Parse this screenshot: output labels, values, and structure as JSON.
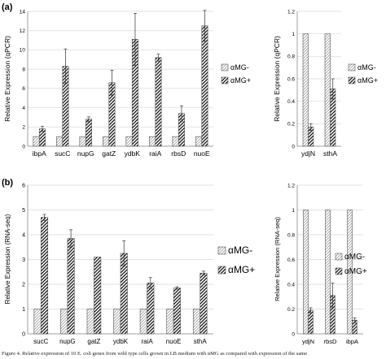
{
  "panel_labels": {
    "a": "(a)",
    "b": "(b)"
  },
  "legend": {
    "neg": "αMG-",
    "pos": "αMG+"
  },
  "caption": "Figure 4. Relative expression of 10 E. coli genes from wild type cells grown in LB medium with αMG as compared with expression of the same",
  "colors": {
    "bar": "#ffffff",
    "stroke": "#555555",
    "grid": "#d9d9d9",
    "axis": "#888888"
  },
  "chart_data": [
    {
      "type": "bar",
      "panel": "a-left",
      "ylabel": "Relative Expression (qPCR)",
      "ylim": [
        0,
        14
      ],
      "yticks": [
        0,
        2,
        4,
        6,
        8,
        10,
        12,
        14
      ],
      "grid": true,
      "legend_position": "right",
      "categories": [
        "ibpA",
        "sucC",
        "nupG",
        "gatZ",
        "ydbK",
        "raiA",
        "rbsD",
        "nuoE"
      ],
      "series": [
        {
          "name": "αMG-",
          "values": [
            1,
            1,
            1,
            1,
            1,
            1,
            1,
            1
          ],
          "errors": [
            0,
            0,
            0,
            0,
            0,
            0,
            0,
            0
          ]
        },
        {
          "name": "αMG+",
          "values": [
            1.8,
            8.3,
            2.8,
            6.6,
            11.1,
            9.2,
            3.4,
            12.5
          ],
          "errors": [
            0.25,
            1.8,
            0.25,
            1.3,
            2.7,
            0.35,
            0.8,
            1.6
          ]
        }
      ]
    },
    {
      "type": "bar",
      "panel": "a-right",
      "ylabel": "Relative Expression (qPCR)",
      "ylim": [
        0,
        1.2
      ],
      "yticks": [
        0,
        0.2,
        0.4,
        0.6,
        0.8,
        1,
        1.2
      ],
      "grid": true,
      "legend_position": "right",
      "categories": [
        "ydjN",
        "sthA"
      ],
      "series": [
        {
          "name": "αMG-",
          "values": [
            1,
            1
          ],
          "errors": [
            0,
            0
          ]
        },
        {
          "name": "αMG+",
          "values": [
            0.17,
            0.51
          ],
          "errors": [
            0.03,
            0.09
          ]
        }
      ]
    },
    {
      "type": "bar",
      "panel": "b-left",
      "ylabel": "Relative Expression (RNA-seq)",
      "ylim": [
        0,
        6
      ],
      "yticks": [
        0,
        1,
        2,
        3,
        4,
        5,
        6
      ],
      "grid": true,
      "legend_position": "right",
      "categories": [
        "sucC",
        "nupG",
        "gatZ",
        "ydbK",
        "raiA",
        "nuoE",
        "sthA"
      ],
      "series": [
        {
          "name": "αMG-",
          "values": [
            1,
            1,
            1,
            1,
            1,
            1,
            1
          ],
          "errors": [
            0,
            0,
            0,
            0,
            0,
            0,
            0
          ]
        },
        {
          "name": "αMG+",
          "values": [
            4.7,
            3.85,
            3.1,
            3.25,
            2.05,
            1.85,
            2.45
          ],
          "errors": [
            0.12,
            0.35,
            0.0,
            0.5,
            0.22,
            0.05,
            0.08
          ]
        }
      ]
    },
    {
      "type": "bar",
      "panel": "b-right",
      "ylabel": "Relative Expression (RNA-seq)",
      "ylim": [
        0,
        1.2
      ],
      "yticks": [
        0,
        0.2,
        0.4,
        0.6,
        0.8,
        1,
        1.2
      ],
      "grid": true,
      "legend_position": "right",
      "categories": [
        "ydjN",
        "rbsD",
        "ibpA"
      ],
      "series": [
        {
          "name": "αMG-",
          "values": [
            1,
            1,
            1
          ],
          "errors": [
            0,
            0,
            0
          ]
        },
        {
          "name": "αMG+",
          "values": [
            0.19,
            0.31,
            0.11
          ],
          "errors": [
            0.02,
            0.1,
            0.02
          ]
        }
      ]
    }
  ]
}
